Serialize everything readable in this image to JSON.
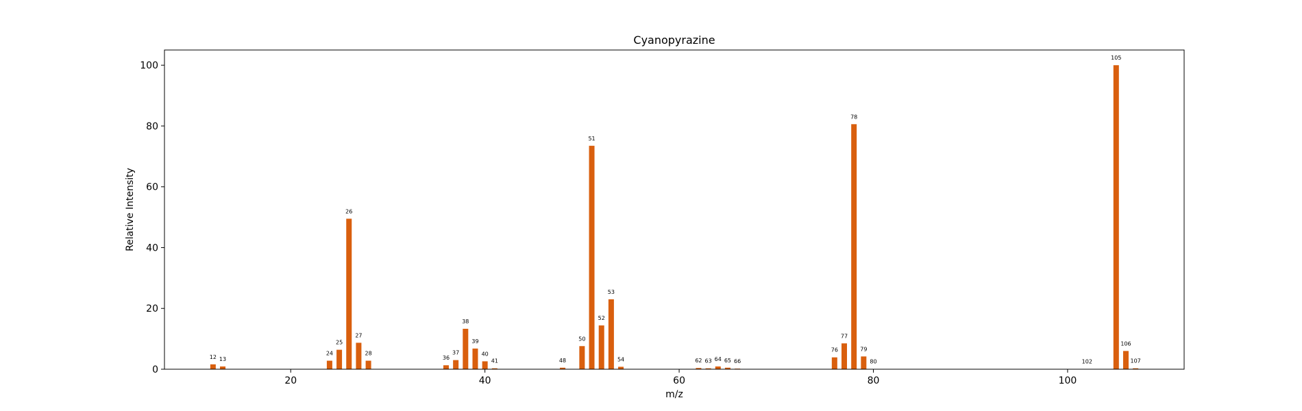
{
  "chart_data": {
    "type": "bar",
    "title": "Cyanopyrazine",
    "xlabel": "m/z",
    "ylabel": "Relative Intensity",
    "xlim": [
      7,
      112
    ],
    "ylim": [
      0,
      105
    ],
    "xticks": [
      20,
      40,
      60,
      80,
      100
    ],
    "yticks": [
      0,
      20,
      40,
      60,
      80,
      100
    ],
    "bar_color": "#d95f0e",
    "grid": false,
    "legend": "none",
    "points": [
      {
        "mz": 12,
        "intensity": 1.6
      },
      {
        "mz": 13,
        "intensity": 0.9
      },
      {
        "mz": 24,
        "intensity": 2.8
      },
      {
        "mz": 25,
        "intensity": 6.4
      },
      {
        "mz": 26,
        "intensity": 49.5
      },
      {
        "mz": 27,
        "intensity": 8.7
      },
      {
        "mz": 28,
        "intensity": 2.8
      },
      {
        "mz": 36,
        "intensity": 1.3
      },
      {
        "mz": 37,
        "intensity": 3.0
      },
      {
        "mz": 38,
        "intensity": 13.3
      },
      {
        "mz": 39,
        "intensity": 6.8
      },
      {
        "mz": 40,
        "intensity": 2.6
      },
      {
        "mz": 41,
        "intensity": 0.3
      },
      {
        "mz": 48,
        "intensity": 0.5
      },
      {
        "mz": 50,
        "intensity": 7.6
      },
      {
        "mz": 51,
        "intensity": 73.5
      },
      {
        "mz": 52,
        "intensity": 14.4
      },
      {
        "mz": 53,
        "intensity": 23.0
      },
      {
        "mz": 54,
        "intensity": 0.8
      },
      {
        "mz": 62,
        "intensity": 0.4
      },
      {
        "mz": 63,
        "intensity": 0.3
      },
      {
        "mz": 64,
        "intensity": 0.9
      },
      {
        "mz": 65,
        "intensity": 0.5
      },
      {
        "mz": 66,
        "intensity": 0.2
      },
      {
        "mz": 76,
        "intensity": 3.9
      },
      {
        "mz": 77,
        "intensity": 8.5
      },
      {
        "mz": 78,
        "intensity": 80.6
      },
      {
        "mz": 79,
        "intensity": 4.2
      },
      {
        "mz": 80,
        "intensity": 0.1
      },
      {
        "mz": 102,
        "intensity": 0.1
      },
      {
        "mz": 105,
        "intensity": 100.0
      },
      {
        "mz": 106,
        "intensity": 6.0
      },
      {
        "mz": 107,
        "intensity": 0.3
      }
    ]
  }
}
